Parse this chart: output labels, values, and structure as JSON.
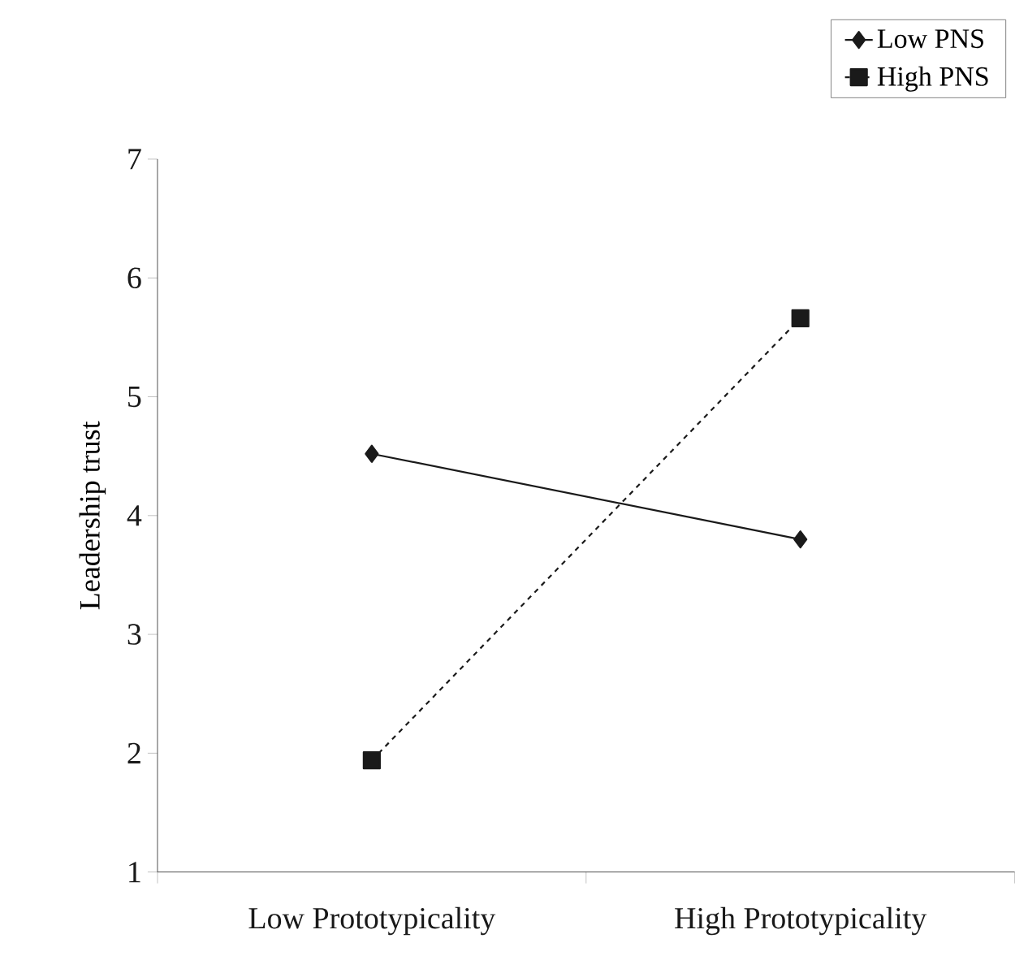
{
  "chart_data": {
    "type": "line",
    "ylabel": "Leadership trust",
    "categories": [
      "Low Prototypicality",
      "High Prototypicality"
    ],
    "series": [
      {
        "name": "Low PNS",
        "color": "#1a1a1a",
        "values": [
          4.52,
          3.8
        ],
        "marker": "diamond",
        "line_style": "solid"
      },
      {
        "name": "High PNS",
        "color": "#1a1a1a",
        "values": [
          1.94,
          5.66
        ],
        "marker": "square",
        "line_style": "dashed"
      }
    ],
    "ylim": [
      1,
      7
    ],
    "yticks": [
      1,
      2,
      3,
      4,
      5,
      6,
      7
    ],
    "grid": false,
    "legend": "top right"
  }
}
